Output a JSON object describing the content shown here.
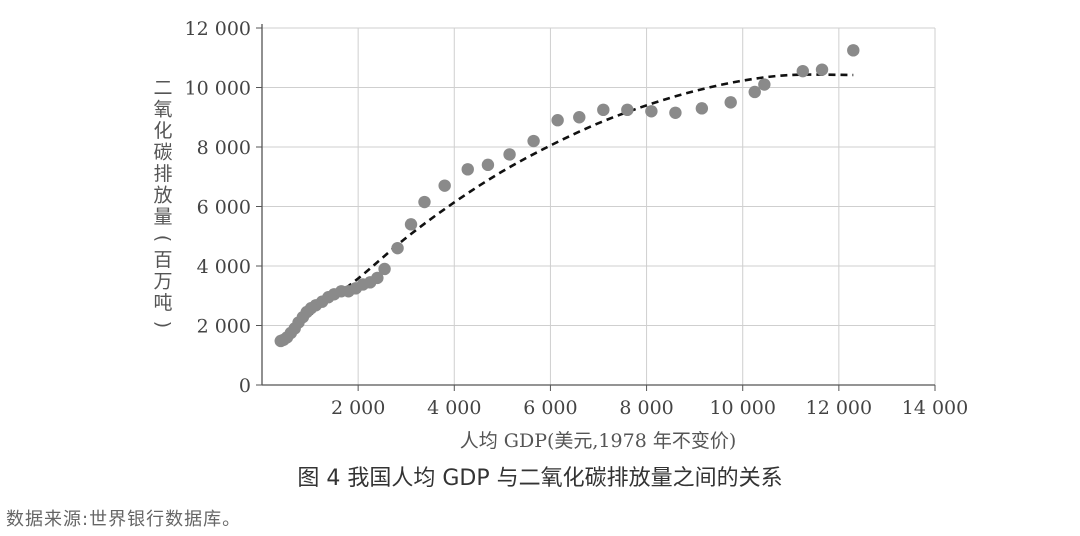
{
  "chart_data": {
    "type": "scatter",
    "caption": "图 4  我国人均 GDP 与二氧化碳排放量之间的关系",
    "xlabel": "人均 GDP(美元,1978 年不变价)",
    "ylabel": "二氧化碳排放量(百万吨)",
    "xlim": [
      0,
      14000
    ],
    "ylim": [
      0,
      12000
    ],
    "x_ticks": [
      2000,
      4000,
      6000,
      8000,
      10000,
      12000,
      14000
    ],
    "x_tick_labels": [
      "2 000",
      "4 000",
      "6 000",
      "8 000",
      "10 000",
      "12 000",
      "14 000"
    ],
    "y_ticks": [
      0,
      2000,
      4000,
      6000,
      8000,
      10000,
      12000
    ],
    "y_tick_labels": [
      "0",
      "2 000",
      "4 000",
      "6 000",
      "8 000",
      "10 000",
      "12 000"
    ],
    "grid": true,
    "point_color": "#8a8a8a",
    "trend_color": "#111111",
    "series": [
      {
        "points": [
          [
            390,
            1480
          ],
          [
            450,
            1520
          ],
          [
            520,
            1600
          ],
          [
            600,
            1750
          ],
          [
            680,
            1900
          ],
          [
            760,
            2100
          ],
          [
            850,
            2280
          ],
          [
            930,
            2450
          ],
          [
            1020,
            2580
          ],
          [
            1120,
            2680
          ],
          [
            1250,
            2800
          ],
          [
            1380,
            2950
          ],
          [
            1500,
            3050
          ],
          [
            1650,
            3150
          ],
          [
            1800,
            3150
          ],
          [
            1950,
            3250
          ],
          [
            2100,
            3380
          ],
          [
            2250,
            3450
          ],
          [
            2400,
            3600
          ],
          [
            2550,
            3900
          ],
          [
            2820,
            4600
          ],
          [
            3100,
            5400
          ],
          [
            3380,
            6150
          ],
          [
            3800,
            6700
          ],
          [
            4280,
            7250
          ],
          [
            4700,
            7400
          ],
          [
            5150,
            7750
          ],
          [
            5650,
            8200
          ],
          [
            6150,
            8900
          ],
          [
            6600,
            9000
          ],
          [
            7100,
            9250
          ],
          [
            7600,
            9250
          ],
          [
            8100,
            9200
          ],
          [
            8600,
            9150
          ],
          [
            9150,
            9300
          ],
          [
            9750,
            9500
          ],
          [
            10250,
            9850
          ],
          [
            10450,
            10100
          ],
          [
            11250,
            10550
          ],
          [
            11650,
            10600
          ],
          [
            12300,
            11250
          ]
        ]
      }
    ],
    "trend": {
      "style": "dashed",
      "points": [
        [
          400,
          1450
        ],
        [
          1000,
          2350
        ],
        [
          2000,
          3580
        ],
        [
          3000,
          4950
        ],
        [
          4000,
          6140
        ],
        [
          5000,
          7180
        ],
        [
          6000,
          8050
        ],
        [
          7000,
          8800
        ],
        [
          8000,
          9400
        ],
        [
          9000,
          9880
        ],
        [
          10000,
          10230
        ],
        [
          11000,
          10420
        ],
        [
          12300,
          10420
        ]
      ]
    }
  },
  "source_text": "数据来源:世界银行数据库。"
}
